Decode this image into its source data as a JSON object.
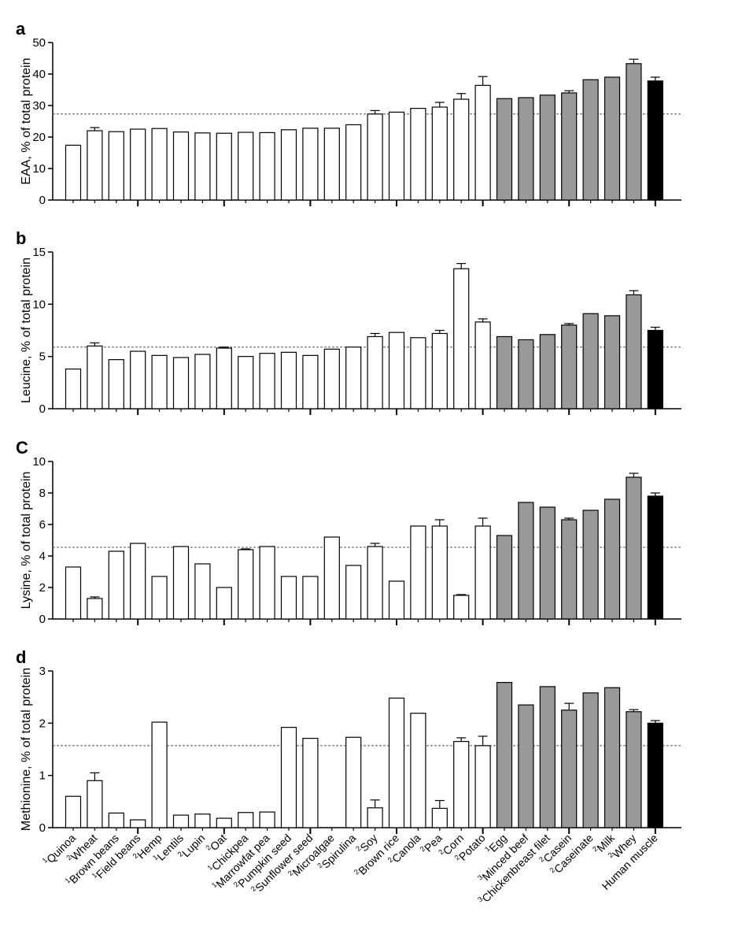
{
  "chart_data": [
    {
      "type": "bar",
      "panel_label": "a",
      "ylabel": "EAA, % of total protein",
      "ylim": [
        0,
        50
      ],
      "yticks": [
        "0",
        "10",
        "20",
        "30",
        "40",
        "50"
      ],
      "reference_line": 27.3,
      "values": [
        17.4,
        22.0,
        21.7,
        22.5,
        22.7,
        21.6,
        21.3,
        21.2,
        21.5,
        21.4,
        22.3,
        22.8,
        22.8,
        23.9,
        27.3,
        27.9,
        29.1,
        29.5,
        32.0,
        36.4,
        32.2,
        32.5,
        33.3,
        34.0,
        38.2,
        39.0,
        43.3,
        37.8
      ],
      "errors": [
        0,
        1.0,
        0,
        0,
        0,
        0,
        0,
        0,
        0,
        0,
        0,
        0,
        0,
        0,
        1.1,
        0,
        0,
        1.5,
        1.8,
        2.8,
        0,
        0,
        0,
        0.7,
        0,
        0,
        1.4,
        1.2
      ]
    },
    {
      "type": "bar",
      "panel_label": "b",
      "ylabel": "Leucine, % of total protein",
      "ylim": [
        0,
        15
      ],
      "yticks": [
        "0",
        "5",
        "10",
        "15"
      ],
      "reference_line": 5.9,
      "values": [
        3.8,
        6.0,
        4.7,
        5.5,
        5.1,
        4.9,
        5.2,
        5.8,
        5.0,
        5.3,
        5.4,
        5.1,
        5.7,
        5.9,
        6.9,
        7.3,
        6.8,
        7.2,
        13.4,
        8.3,
        6.9,
        6.6,
        7.1,
        8.0,
        9.1,
        8.9,
        10.9,
        7.5
      ],
      "errors": [
        0,
        0.3,
        0,
        0,
        0,
        0,
        0,
        0.1,
        0,
        0,
        0,
        0,
        0,
        0,
        0.3,
        0,
        0,
        0.3,
        0.5,
        0.3,
        0,
        0,
        0,
        0.15,
        0,
        0,
        0.4,
        0.3
      ]
    },
    {
      "type": "bar",
      "panel_label": "C",
      "ylabel": "Lysine, % of total protein",
      "ylim": [
        0,
        10
      ],
      "yticks": [
        "0",
        "2",
        "4",
        "6",
        "8",
        "10"
      ],
      "reference_line": 4.55,
      "values": [
        3.3,
        1.3,
        4.3,
        4.8,
        2.7,
        4.6,
        3.5,
        2.0,
        4.4,
        4.6,
        2.7,
        2.7,
        5.2,
        3.4,
        4.6,
        2.4,
        5.9,
        5.9,
        1.5,
        5.9,
        5.3,
        7.4,
        7.1,
        6.3,
        6.9,
        7.6,
        9.0,
        7.8
      ],
      "errors": [
        0,
        0.1,
        0,
        0,
        0,
        0,
        0,
        0,
        0.05,
        0,
        0,
        0,
        0,
        0,
        0.2,
        0,
        0,
        0.4,
        0.05,
        0.5,
        0,
        0,
        0,
        0.1,
        0,
        0,
        0.25,
        0.2
      ]
    },
    {
      "type": "bar",
      "panel_label": "d",
      "ylabel": "Methionine, % of total protein",
      "ylim": [
        0,
        3
      ],
      "yticks": [
        "0",
        "1",
        "2",
        "3"
      ],
      "reference_line": 1.57,
      "values": [
        0.6,
        0.9,
        0.28,
        0.15,
        2.02,
        0.24,
        0.26,
        0.18,
        0.29,
        0.3,
        1.92,
        1.71,
        0,
        1.73,
        0.38,
        2.48,
        2.19,
        0.37,
        1.65,
        1.57,
        2.78,
        2.35,
        2.7,
        2.25,
        2.58,
        2.68,
        2.22,
        2.0
      ],
      "errors": [
        0,
        0.15,
        0,
        0,
        0,
        0,
        0,
        0,
        0,
        0,
        0,
        0,
        0,
        0,
        0.15,
        0,
        0,
        0.15,
        0.07,
        0.18,
        0,
        0,
        0,
        0.13,
        0,
        0,
        0.04,
        0.05
      ]
    }
  ],
  "categories": [
    {
      "sup": "1",
      "name": "Quinoa",
      "group": "plant"
    },
    {
      "sup": "2",
      "name": "Wheat",
      "group": "plant"
    },
    {
      "sup": "1",
      "name": "Brown beans",
      "group": "plant"
    },
    {
      "sup": "1",
      "name": "Field beans",
      "group": "plant"
    },
    {
      "sup": "2",
      "name": "Hemp",
      "group": "plant"
    },
    {
      "sup": "1",
      "name": "Lentils",
      "group": "plant"
    },
    {
      "sup": "2",
      "name": "Lupin",
      "group": "plant"
    },
    {
      "sup": "2",
      "name": "Oat",
      "group": "plant"
    },
    {
      "sup": "1",
      "name": "Chickpea",
      "group": "plant"
    },
    {
      "sup": "1",
      "name": "Marrowfat pea",
      "group": "plant"
    },
    {
      "sup": "2",
      "name": "Pumpkin seed",
      "group": "plant"
    },
    {
      "sup": "2",
      "name": "Sunflower seed",
      "group": "plant"
    },
    {
      "sup": "2",
      "name": "Microalgae",
      "group": "plant"
    },
    {
      "sup": "2",
      "name": "Spirulina",
      "group": "plant"
    },
    {
      "sup": "2",
      "name": "Soy",
      "group": "plant"
    },
    {
      "sup": "2",
      "name": "Brown rice",
      "group": "plant"
    },
    {
      "sup": "2",
      "name": "Canola",
      "group": "plant"
    },
    {
      "sup": "2",
      "name": "Pea",
      "group": "plant"
    },
    {
      "sup": "2",
      "name": "Corn",
      "group": "plant"
    },
    {
      "sup": "2",
      "name": "Potato",
      "group": "plant"
    },
    {
      "sup": "1",
      "name": "Egg",
      "group": "animal"
    },
    {
      "sup": "3",
      "name": "Minced beef",
      "group": "animal"
    },
    {
      "sup": "3",
      "name": "Chickenbreast filet",
      "group": "animal"
    },
    {
      "sup": "2",
      "name": "Casein",
      "group": "animal"
    },
    {
      "sup": "2",
      "name": "Caseinate",
      "group": "animal"
    },
    {
      "sup": "2",
      "name": "Milk",
      "group": "animal"
    },
    {
      "sup": "2",
      "name": "Whey",
      "group": "animal"
    },
    {
      "sup": "",
      "name": "Human muscle",
      "group": "human"
    }
  ],
  "colors": {
    "plant": "#ffffff",
    "animal": "#999999",
    "human": "#000000",
    "stroke": "#000000",
    "reference": "#555555"
  }
}
